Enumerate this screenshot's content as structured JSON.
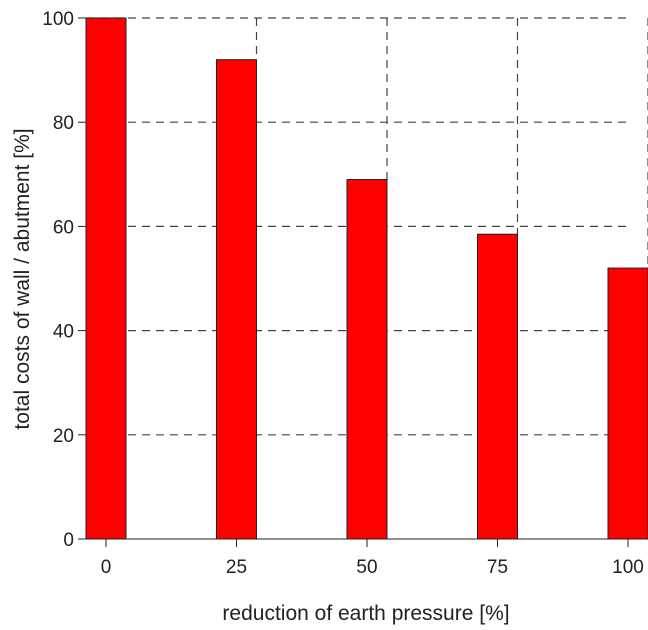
{
  "chart_data": {
    "type": "bar",
    "categories": [
      "0",
      "25",
      "50",
      "75",
      "100"
    ],
    "values": [
      100,
      92,
      69,
      58.5,
      52
    ],
    "title": "",
    "xlabel": "reduction of earth pressure [%]",
    "ylabel": "total costs of wall / abutment [%]",
    "ylim": [
      0,
      100
    ],
    "yticks": [
      "0",
      "20",
      "40",
      "60",
      "80",
      "100"
    ],
    "grid": true,
    "bar_color": "#ff0000"
  }
}
